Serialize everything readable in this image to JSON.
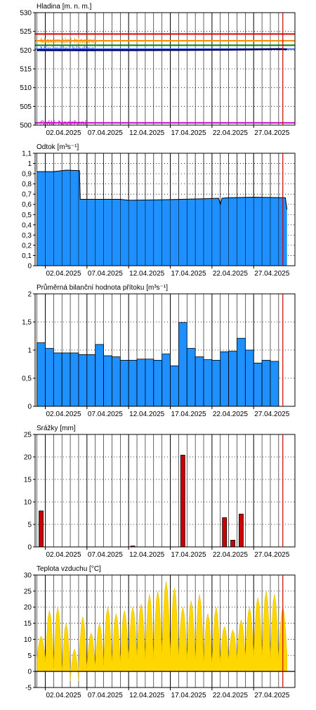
{
  "x_labels": [
    "02.04.2025",
    "07.04.2025",
    "12.04.2025",
    "17.04.2025",
    "22.04.2025",
    "27.04.2025"
  ],
  "colors": {
    "flow_fill": "#1e90ff",
    "rain_bar": "#cc0000",
    "temp_fill": "#ffd700",
    "now_line": "#cc0000",
    "grid": "#000000"
  },
  "chart_data": [
    {
      "type": "line",
      "title": "Hladina [m. n. m.]",
      "ylim": [
        500,
        530
      ],
      "yticks": [
        500,
        505,
        510,
        515,
        520,
        525,
        530
      ],
      "limits": [
        {
          "label": "",
          "value": 524.3,
          "color": "#e00000"
        },
        {
          "label": "Maximální hladina",
          "value": 522.5,
          "color": "#ff8c00"
        },
        {
          "label": "",
          "value": 521.3,
          "color": "#008000"
        },
        {
          "label": "Minimální hladina",
          "value": 520.3,
          "color": "#4466ff"
        },
        {
          "label": "Stálé Nadržení",
          "value": 500.6,
          "color": "#cc00cc"
        }
      ],
      "series": [
        {
          "color": "#000060",
          "x": [
            1,
            12,
            24,
            30,
            31
          ],
          "y": [
            520.0,
            520.0,
            520.1,
            520.3,
            520.2
          ]
        }
      ]
    },
    {
      "type": "area",
      "title": "Odtok [m³s⁻¹]",
      "ylim": [
        0,
        1.1
      ],
      "yticks": [
        "0",
        "0,1",
        "0,2",
        "0,3",
        "0,4",
        "0,5",
        "0,6",
        "0,7",
        "0,8",
        "0,9",
        "1",
        "1,1"
      ],
      "x": [
        1,
        3,
        4.5,
        6.1,
        6.2,
        11,
        12,
        16,
        21,
        22.8,
        23,
        23.2,
        24,
        27,
        30.8,
        31
      ],
      "y": [
        0.92,
        0.92,
        0.935,
        0.93,
        0.65,
        0.65,
        0.64,
        0.645,
        0.655,
        0.66,
        0.6,
        0.66,
        0.665,
        0.67,
        0.665,
        0.55
      ]
    },
    {
      "type": "bar",
      "title": "Průměrná bilanční hodnota přítoku   [m³s⁻¹]",
      "ylim": [
        0,
        2
      ],
      "yticks": [
        "0",
        "0,5",
        "1",
        "1,5",
        "2"
      ],
      "values": [
        1.13,
        1.03,
        0.95,
        0.95,
        0.95,
        0.92,
        0.92,
        1.1,
        0.9,
        0.88,
        0.82,
        0.82,
        0.84,
        0.84,
        0.82,
        0.93,
        0.72,
        1.49,
        1.03,
        0.88,
        0.83,
        0.82,
        0.97,
        0.98,
        1.21,
        1.0,
        0.77,
        0.82,
        0.8
      ]
    },
    {
      "type": "bar",
      "title": "Srážky [mm]",
      "ylim": [
        0,
        25
      ],
      "yticks": [
        "0",
        "5",
        "10",
        "15",
        "20",
        "25"
      ],
      "values": [
        8.0,
        0,
        0,
        0,
        0,
        0,
        0,
        0,
        0,
        0,
        0,
        0.2,
        0,
        0,
        0,
        0,
        0,
        20.4,
        0,
        0,
        0,
        0,
        6.5,
        1.5,
        7.3,
        0,
        0,
        0,
        0,
        0
      ]
    },
    {
      "type": "area",
      "title": "Teplota vzduchu [°C]",
      "ylim": [
        -5,
        30
      ],
      "yticks": [
        "-5",
        "0",
        "5",
        "10",
        "15",
        "20",
        "25",
        "30"
      ],
      "daily_min": [
        4,
        3,
        1,
        0,
        -3,
        1,
        2,
        2,
        3,
        3,
        4,
        5,
        5,
        4,
        6,
        7,
        5,
        5,
        4,
        4,
        3,
        3,
        4,
        4,
        5,
        5,
        6,
        5,
        4,
        5
      ],
      "daily_max": [
        11,
        19,
        20,
        15,
        7,
        17,
        12,
        15,
        20,
        18,
        19,
        20,
        21,
        24,
        25,
        28,
        26,
        20,
        22,
        24,
        18,
        20,
        14,
        13,
        16,
        20,
        23,
        25,
        24,
        20
      ]
    }
  ]
}
